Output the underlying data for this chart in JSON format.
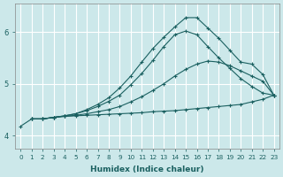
{
  "xlabel": "Humidex (Indice chaleur)",
  "bg_color": "#cce8ea",
  "grid_color": "#ffffff",
  "line_color": "#1a6060",
  "xlim": [
    -0.5,
    23.5
  ],
  "ylim": [
    3.75,
    6.55
  ],
  "yticks": [
    4,
    5,
    6
  ],
  "xticks": [
    0,
    1,
    2,
    3,
    4,
    5,
    6,
    7,
    8,
    9,
    10,
    11,
    12,
    13,
    14,
    15,
    16,
    17,
    18,
    19,
    20,
    21,
    22,
    23
  ],
  "lines": [
    {
      "x": [
        1,
        2,
        3,
        4,
        5,
        6,
        7,
        8,
        9,
        10,
        11,
        12,
        13,
        14,
        15,
        16,
        17,
        18,
        19,
        20,
        21,
        22,
        23
      ],
      "y": [
        4.32,
        4.32,
        4.35,
        4.37,
        4.38,
        4.39,
        4.4,
        4.41,
        4.42,
        4.43,
        4.44,
        4.46,
        4.47,
        4.48,
        4.5,
        4.52,
        4.54,
        4.56,
        4.58,
        4.6,
        4.65,
        4.7,
        4.78
      ]
    },
    {
      "x": [
        1,
        2,
        3,
        4,
        5,
        6,
        7,
        8,
        9,
        10,
        11,
        12,
        13,
        14,
        15,
        16,
        17,
        18,
        19,
        20,
        21,
        22,
        23
      ],
      "y": [
        4.32,
        4.32,
        4.35,
        4.37,
        4.39,
        4.42,
        4.46,
        4.5,
        4.56,
        4.65,
        4.75,
        4.87,
        5.0,
        5.15,
        5.28,
        5.38,
        5.44,
        5.42,
        5.35,
        5.25,
        5.15,
        5.05,
        4.78
      ]
    },
    {
      "x": [
        1,
        2,
        3,
        4,
        5,
        6,
        7,
        8,
        9,
        10,
        11,
        12,
        13,
        14,
        15,
        16,
        17,
        18,
        19,
        20,
        21,
        22,
        23
      ],
      "y": [
        4.32,
        4.32,
        4.35,
        4.38,
        4.42,
        4.48,
        4.56,
        4.66,
        4.78,
        4.98,
        5.2,
        5.45,
        5.72,
        5.95,
        6.02,
        5.95,
        5.72,
        5.5,
        5.3,
        5.1,
        4.95,
        4.82,
        4.78
      ]
    },
    {
      "x": [
        0,
        1,
        2,
        3,
        4,
        5,
        6,
        7,
        8,
        9,
        10,
        11,
        12,
        13,
        14,
        15,
        16,
        17,
        18,
        19,
        20,
        21,
        22,
        23
      ],
      "y": [
        4.18,
        4.32,
        4.32,
        4.35,
        4.38,
        4.42,
        4.5,
        4.6,
        4.73,
        4.92,
        5.15,
        5.42,
        5.68,
        5.9,
        6.1,
        6.28,
        6.28,
        6.08,
        5.88,
        5.65,
        5.42,
        5.38,
        5.18,
        4.78
      ]
    }
  ]
}
